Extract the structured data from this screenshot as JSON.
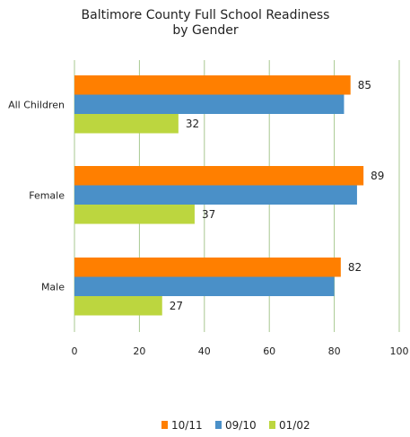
{
  "chart_data": {
    "type": "bar",
    "orientation": "horizontal",
    "title": "Baltimore County Full School Readiness",
    "subtitle": "by Gender",
    "categories": [
      "All Children",
      "Female",
      "Male"
    ],
    "series": [
      {
        "name": "10/11",
        "color": "#ff7f00",
        "values": [
          85,
          89,
          82
        ]
      },
      {
        "name": "09/10",
        "color": "#4a90c8",
        "values": [
          83,
          87,
          80
        ]
      },
      {
        "name": "01/02",
        "color": "#bcd63f",
        "values": [
          32,
          37,
          27
        ]
      }
    ],
    "data_labels": [
      {
        "category": "All Children",
        "series": "10/11",
        "text": "85"
      },
      {
        "category": "All Children",
        "series": "01/02",
        "text": "32"
      },
      {
        "category": "Female",
        "series": "10/11",
        "text": "89"
      },
      {
        "category": "Female",
        "series": "01/02",
        "text": "37"
      },
      {
        "category": "Male",
        "series": "10/11",
        "text": "82"
      },
      {
        "category": "Male",
        "series": "01/02",
        "text": "27"
      }
    ],
    "xlim": [
      0,
      100
    ],
    "xticks": [
      0,
      20,
      40,
      60,
      80,
      100
    ],
    "grid": true,
    "grid_color": "#a8c890",
    "legend_position": "bottom"
  }
}
